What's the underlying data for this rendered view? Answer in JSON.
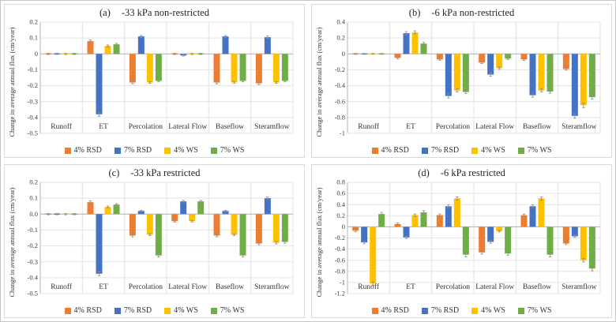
{
  "chart_data": {
    "type": "bar",
    "categories": [
      "Runoff",
      "ET",
      "Percolation",
      "Lateral Flow",
      "Baseflow",
      "Steramflow"
    ],
    "series_names": [
      "4% RSD",
      "7% RSD",
      "4% WS",
      "7% WS"
    ],
    "colors": [
      "#ED7D31",
      "#4472C4",
      "#FFC000",
      "#70AD47"
    ],
    "style": {
      "grid_color": "#e3e3e3",
      "zero_line_color": "#b3b3b3",
      "axis_line_color": "#b3b3b3",
      "error_bar_color": "#8c8c8c",
      "tick_text_color": "#404040",
      "category_text_color": "#333333"
    },
    "legend_position": "bottom",
    "grid": true,
    "charts": [
      {
        "panel_label": "(a)",
        "title": "-33 kPa non-restricted",
        "ylabel": "Change in average annual flux (cm/year)",
        "ylim": [
          -0.5,
          0.2
        ],
        "yticks": [
          0.2,
          0.1,
          0,
          -0.1,
          -0.2,
          -0.3,
          -0.4,
          -0.5
        ],
        "ytick_labels": [
          "0.2",
          "0.1",
          "0",
          "-0.1",
          "-0.2",
          "-0.3",
          "-0.4",
          "-0.5"
        ],
        "series": [
          {
            "name": "4% RSD",
            "values": [
              0,
              0.08,
              -0.18,
              0,
              -0.18,
              -0.185
            ],
            "errors": [
              0.004,
              0.008,
              0.008,
              0.004,
              0.008,
              0.008
            ]
          },
          {
            "name": "7% RSD",
            "values": [
              0,
              -0.38,
              0.11,
              -0.01,
              0.11,
              0.105
            ],
            "errors": [
              0.004,
              0.012,
              0.006,
              0.004,
              0.006,
              0.008
            ]
          },
          {
            "name": "4% WS",
            "values": [
              0,
              0.05,
              -0.18,
              0,
              -0.18,
              -0.18
            ],
            "errors": [
              0.004,
              0.006,
              0.006,
              0.004,
              0.006,
              0.006
            ]
          },
          {
            "name": "7% WS",
            "values": [
              0,
              0.06,
              -0.17,
              0,
              -0.17,
              -0.17
            ],
            "errors": [
              0.004,
              0.006,
              0.006,
              0.004,
              0.006,
              0.006
            ]
          }
        ]
      },
      {
        "panel_label": "(b)",
        "title": "-6 kPa non-restricted",
        "ylabel": "Change in average annual flux (cm/year)",
        "ylim": [
          -1,
          0.4
        ],
        "yticks": [
          0.4,
          0.2,
          0,
          -0.2,
          -0.4,
          -0.6,
          -0.8,
          -1
        ],
        "ytick_labels": [
          "0.4",
          "0.2",
          "0",
          "-0.2",
          "-0.4",
          "-0.6",
          "-0.8",
          "-1"
        ],
        "series": [
          {
            "name": "4% RSD",
            "values": [
              0,
              -0.05,
              -0.07,
              -0.11,
              -0.07,
              -0.19
            ],
            "errors": [
              0.006,
              0.01,
              0.012,
              0.012,
              0.012,
              0.015
            ]
          },
          {
            "name": "7% RSD",
            "values": [
              0,
              0.26,
              -0.53,
              -0.26,
              -0.52,
              -0.78
            ],
            "errors": [
              0.006,
              0.02,
              0.025,
              0.02,
              0.025,
              0.03
            ]
          },
          {
            "name": "4% WS",
            "values": [
              0,
              0.27,
              -0.46,
              -0.18,
              -0.46,
              -0.645
            ],
            "errors": [
              0.006,
              0.02,
              0.02,
              0.015,
              0.02,
              0.03
            ]
          },
          {
            "name": "7% WS",
            "values": [
              0,
              0.13,
              -0.48,
              -0.06,
              -0.475,
              -0.545
            ],
            "errors": [
              0.006,
              0.015,
              0.02,
              0.01,
              0.02,
              0.025
            ]
          }
        ]
      },
      {
        "panel_label": "(c)",
        "title": "-33 kPa restricted",
        "ylabel": "Change in average annual flux (cm/year)",
        "ylim": [
          -0.5,
          0.2
        ],
        "yticks": [
          0.2,
          0.1,
          0,
          -0.1,
          -0.2,
          -0.3,
          -0.4,
          -0.5
        ],
        "ytick_labels": [
          "0.2",
          "0.1",
          "0.0",
          "-0.1",
          "-0.2",
          "-0.3",
          "-0.4",
          "-0.5"
        ],
        "series": [
          {
            "name": "4% RSD",
            "values": [
              0,
              0.075,
              -0.135,
              -0.045,
              -0.135,
              -0.185
            ],
            "errors": [
              0.004,
              0.008,
              0.008,
              0.005,
              0.008,
              0.008
            ]
          },
          {
            "name": "7% RSD",
            "values": [
              0,
              -0.375,
              0.02,
              0.08,
              0.02,
              0.1
            ],
            "errors": [
              0.004,
              0.012,
              0.004,
              0.006,
              0.004,
              0.008
            ]
          },
          {
            "name": "4% WS",
            "values": [
              0,
              0.045,
              -0.13,
              -0.045,
              -0.13,
              -0.18
            ],
            "errors": [
              0.004,
              0.006,
              0.006,
              0.005,
              0.006,
              0.008
            ]
          },
          {
            "name": "7% WS",
            "values": [
              0,
              0.06,
              -0.26,
              0.08,
              -0.26,
              -0.175
            ],
            "errors": [
              0.004,
              0.006,
              0.01,
              0.006,
              0.01,
              0.008
            ]
          }
        ]
      },
      {
        "panel_label": "(d)",
        "title": "-6 kPa restricted",
        "ylabel": "Change in average annual flux (cm/year)",
        "ylim": [
          -1.2,
          0.8
        ],
        "yticks": [
          0.8,
          0.6,
          0.4,
          0.2,
          0,
          -0.2,
          -0.4,
          -0.6,
          -0.8,
          -1,
          -1.2
        ],
        "ytick_labels": [
          "0.8",
          "0.6",
          "0.4",
          "0.2",
          "0",
          "-0.2",
          "-0.4",
          "-0.6",
          "-0.8",
          "-1",
          "-1.2"
        ],
        "series": [
          {
            "name": "4% RSD",
            "values": [
              -0.07,
              0.05,
              0.21,
              -0.46,
              0.21,
              -0.3
            ],
            "errors": [
              0.02,
              0.02,
              0.02,
              0.03,
              0.02,
              0.02
            ]
          },
          {
            "name": "7% RSD",
            "values": [
              -0.28,
              -0.19,
              0.37,
              -0.27,
              0.37,
              -0.17
            ],
            "errors": [
              0.025,
              0.02,
              0.025,
              0.025,
              0.025,
              0.02
            ]
          },
          {
            "name": "4% WS",
            "values": [
              -1.02,
              0.21,
              0.51,
              -0.08,
              0.51,
              -0.6
            ],
            "errors": [
              0.03,
              0.02,
              0.03,
              0.015,
              0.03,
              0.03
            ]
          },
          {
            "name": "7% WS",
            "values": [
              0.23,
              0.26,
              -0.5,
              -0.48,
              -0.5,
              -0.75
            ],
            "errors": [
              0.03,
              0.03,
              0.04,
              0.03,
              0.04,
              0.04
            ]
          }
        ]
      }
    ]
  }
}
